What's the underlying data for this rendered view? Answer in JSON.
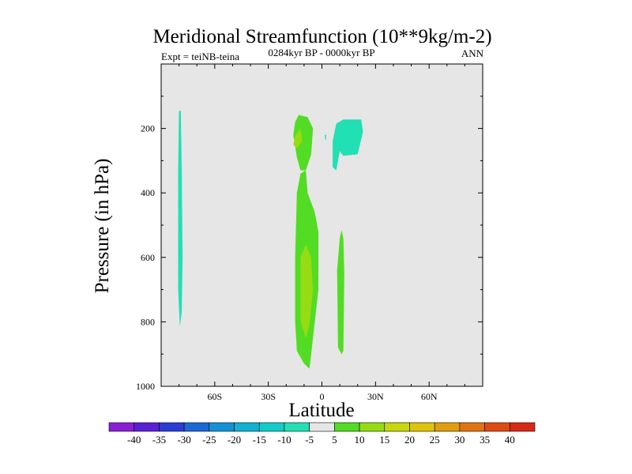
{
  "chart_data": {
    "type": "contour",
    "title": "Meridional Streamfunction (10**9kg/m-2)",
    "left_string": "Expt = teiNB-teina",
    "center_string": "0284kyr BP - 0000kyr BP",
    "right_string": "ANN",
    "xlabel": "Latitude",
    "ylabel": "Pressure (in hPa)",
    "xlim": [
      -90,
      90
    ],
    "ylim": [
      1000,
      0
    ],
    "x_ticks": [
      {
        "value": -60,
        "label": "60S"
      },
      {
        "value": -30,
        "label": "30S"
      },
      {
        "value": 0,
        "label": "0"
      },
      {
        "value": 30,
        "label": "30N"
      },
      {
        "value": 60,
        "label": "60N"
      }
    ],
    "y_ticks": [
      {
        "value": 200,
        "label": "200"
      },
      {
        "value": 400,
        "label": "400"
      },
      {
        "value": 600,
        "label": "600"
      },
      {
        "value": 800,
        "label": "800"
      },
      {
        "value": 1000,
        "label": "1000"
      }
    ],
    "levels": [
      -40,
      -35,
      -30,
      -25,
      -20,
      -15,
      -10,
      -5,
      5,
      10,
      15,
      20,
      25,
      30,
      35,
      40
    ],
    "level_labels": [
      "-40",
      "-35",
      "-30",
      "-25",
      "-20",
      "-15",
      "-10",
      "-5",
      "5",
      "10",
      "15",
      "20",
      "25",
      "30",
      "35",
      "40"
    ],
    "colors": [
      "#8a1fd6",
      "#5a1fd6",
      "#2a3bd6",
      "#1c67d6",
      "#1391d6",
      "#10b2d2",
      "#10cdc9",
      "#20e0b4",
      "#e6e6e6",
      "#52dc23",
      "#95dc12",
      "#c6d80c",
      "#e0c40b",
      "#e09d0d",
      "#e0730f",
      "#e04a12",
      "#d82a18"
    ],
    "background_color": "#e6e6e6",
    "regions": [
      {
        "name": "left-band",
        "level_index": 7,
        "range": "-10 to -5",
        "points": [
          [
            -79,
            145
          ],
          [
            -78.5,
            330
          ],
          [
            -78,
            600
          ],
          [
            -78.5,
            770
          ],
          [
            -79.5,
            815
          ],
          [
            -80.5,
            700
          ],
          [
            -80.5,
            330
          ],
          [
            -80,
            145
          ]
        ]
      },
      {
        "name": "upper-cell",
        "level_index": 9,
        "range": "5 to 10",
        "points": [
          [
            -13,
            158
          ],
          [
            -8,
            165
          ],
          [
            -5,
            200
          ],
          [
            -6,
            280
          ],
          [
            -9,
            330
          ],
          [
            -12,
            330
          ],
          [
            -14,
            290
          ],
          [
            -16,
            220
          ],
          [
            -15,
            180
          ]
        ]
      },
      {
        "name": "upper-cell-core",
        "level_index": 10,
        "range": "10 to 15",
        "points": [
          [
            -15,
            222
          ],
          [
            -12,
            200
          ],
          [
            -11,
            240
          ],
          [
            -14,
            262
          ],
          [
            -16,
            250
          ]
        ]
      },
      {
        "name": "lower-cell",
        "level_index": 9,
        "range": "5 to 10",
        "points": [
          [
            -9,
            330
          ],
          [
            -8,
            400
          ],
          [
            -4,
            460
          ],
          [
            -2,
            520
          ],
          [
            -2,
            700
          ],
          [
            -4,
            800
          ],
          [
            -6,
            900
          ],
          [
            -7,
            945
          ],
          [
            -10,
            930
          ],
          [
            -14,
            890
          ],
          [
            -15,
            800
          ],
          [
            -15,
            600
          ],
          [
            -14,
            400
          ],
          [
            -12,
            340
          ]
        ]
      },
      {
        "name": "lower-cell-core",
        "level_index": 10,
        "range": "10 to 15",
        "points": [
          [
            -9,
            560
          ],
          [
            -6,
            600
          ],
          [
            -5,
            700
          ],
          [
            -7,
            810
          ],
          [
            -9,
            850
          ],
          [
            -12,
            800
          ],
          [
            -12,
            600
          ]
        ]
      },
      {
        "name": "upper-teal-right",
        "level_index": 7,
        "range": "-10 to -5",
        "points": [
          [
            8,
            185
          ],
          [
            12,
            172
          ],
          [
            22,
            172
          ],
          [
            23,
            210
          ],
          [
            20,
            280
          ],
          [
            12,
            285
          ],
          [
            10,
            270
          ],
          [
            8,
            330
          ],
          [
            6,
            320
          ],
          [
            6,
            240
          ]
        ]
      },
      {
        "name": "small-speck",
        "level_index": 7,
        "range": "-10 to -5",
        "points": [
          [
            1.6,
            220
          ],
          [
            2.4,
            220
          ],
          [
            2.2,
            235
          ],
          [
            1.8,
            235
          ]
        ]
      },
      {
        "name": "right-thin-cell",
        "level_index": 9,
        "range": "5 to 10",
        "points": [
          [
            11,
            515
          ],
          [
            12,
            540
          ],
          [
            12.5,
            650
          ],
          [
            12,
            890
          ],
          [
            11,
            900
          ],
          [
            9,
            880
          ],
          [
            8.5,
            640
          ],
          [
            10,
            540
          ]
        ]
      }
    ]
  }
}
